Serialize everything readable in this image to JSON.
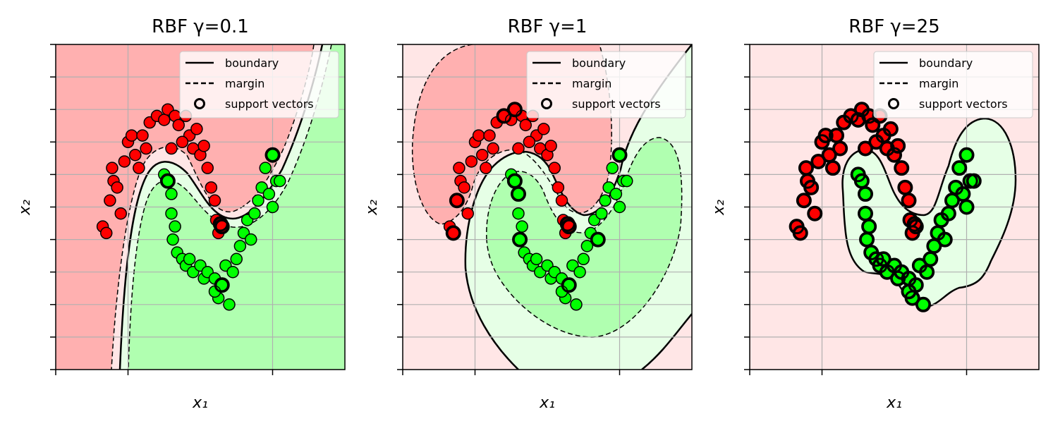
{
  "colors": {
    "class_red": "#ff0000",
    "class_green": "#00ff00",
    "region_red_strong": "#ffb0b0",
    "region_red_light": "#ffe6e6",
    "region_green_strong": "#b0ffb0",
    "region_green_light": "#e6ffe6",
    "grid": "#b0b0b0"
  },
  "legend": {
    "boundary": "boundary",
    "margin": "margin",
    "support_vectors": "support vectors",
    "placement": "upper right"
  },
  "chart_data": [
    {
      "type": "scatter",
      "title": "RBF γ=0.1",
      "xlabel": "x₁",
      "ylabel": "x₂",
      "grid": true,
      "xlim": [
        -1.5,
        2.5
      ],
      "ylim": [
        -1.0,
        1.5
      ],
      "gamma": 0.1
    },
    {
      "type": "scatter",
      "title": "RBF γ=1",
      "xlabel": "x₁",
      "ylabel": "x₂",
      "grid": true,
      "xlim": [
        -1.5,
        2.5
      ],
      "ylim": [
        -1.0,
        1.5
      ],
      "gamma": 1
    },
    {
      "type": "scatter",
      "title": "RBF γ=25",
      "xlabel": "x₁",
      "ylabel": "x₂",
      "grid": true,
      "xlim": [
        -1.5,
        2.5
      ],
      "ylim": [
        -1.0,
        1.5
      ],
      "gamma": 25
    }
  ],
  "dataset": {
    "class_a": [
      [
        -0.85,
        0.1
      ],
      [
        -0.8,
        0.05
      ],
      [
        -0.75,
        0.3
      ],
      [
        -0.7,
        0.45
      ],
      [
        -0.72,
        0.55
      ],
      [
        -0.6,
        0.2
      ],
      [
        -0.55,
        0.6
      ],
      [
        -0.5,
        0.75
      ],
      [
        -0.45,
        0.8
      ],
      [
        -0.4,
        0.65
      ],
      [
        -0.3,
        0.8
      ],
      [
        -0.2,
        0.9
      ],
      [
        -0.1,
        0.95
      ],
      [
        0.0,
        0.92
      ],
      [
        0.05,
        1.0
      ],
      [
        0.15,
        0.95
      ],
      [
        0.2,
        0.88
      ],
      [
        0.3,
        0.95
      ],
      [
        0.35,
        0.8
      ],
      [
        0.4,
        0.7
      ],
      [
        0.45,
        0.85
      ],
      [
        0.5,
        0.65
      ],
      [
        0.55,
        0.72
      ],
      [
        0.6,
        0.55
      ],
      [
        0.65,
        0.4
      ],
      [
        0.7,
        0.3
      ],
      [
        0.72,
        0.15
      ],
      [
        0.75,
        0.05
      ],
      [
        0.78,
        0.12
      ],
      [
        0.8,
        0.1
      ],
      [
        -0.65,
        0.4
      ],
      [
        -0.25,
        0.7
      ],
      [
        0.25,
        0.75
      ],
      [
        0.1,
        0.7
      ],
      [
        -0.35,
        0.55
      ]
    ],
    "class_b": [
      [
        0.0,
        0.5
      ],
      [
        0.05,
        0.45
      ],
      [
        0.1,
        0.35
      ],
      [
        0.1,
        0.2
      ],
      [
        0.15,
        0.1
      ],
      [
        0.12,
        0.0
      ],
      [
        0.18,
        -0.1
      ],
      [
        0.25,
        -0.15
      ],
      [
        0.3,
        -0.2
      ],
      [
        0.4,
        -0.25
      ],
      [
        0.5,
        -0.2
      ],
      [
        0.55,
        -0.3
      ],
      [
        0.6,
        -0.25
      ],
      [
        0.7,
        -0.3
      ],
      [
        0.75,
        -0.45
      ],
      [
        0.8,
        -0.35
      ],
      [
        0.85,
        -0.2
      ],
      [
        0.95,
        -0.25
      ],
      [
        1.0,
        -0.15
      ],
      [
        1.05,
        -0.05
      ],
      [
        1.1,
        0.05
      ],
      [
        1.15,
        0.15
      ],
      [
        1.2,
        0.0
      ],
      [
        1.25,
        0.2
      ],
      [
        1.3,
        0.3
      ],
      [
        1.35,
        0.4
      ],
      [
        1.4,
        0.55
      ],
      [
        1.45,
        0.35
      ],
      [
        1.5,
        0.25
      ],
      [
        1.55,
        0.45
      ],
      [
        1.5,
        0.65
      ],
      [
        1.6,
        0.45
      ],
      [
        0.7,
        -0.4
      ],
      [
        0.35,
        -0.15
      ],
      [
        0.9,
        -0.5
      ]
    ],
    "support_vectors": {
      "panel_0": {
        "class_a": [
          [
            0.78,
            0.12
          ],
          [
            0.8,
            0.1
          ]
        ],
        "class_b": [
          [
            0.05,
            0.45
          ],
          [
            0.8,
            -0.35
          ],
          [
            1.5,
            0.65
          ]
        ]
      },
      "panel_1": {
        "class_a": [
          [
            -0.8,
            0.05
          ],
          [
            -0.75,
            0.3
          ],
          [
            0.78,
            0.12
          ],
          [
            0.8,
            0.1
          ],
          [
            0.05,
            1.0
          ],
          [
            -0.1,
            0.95
          ]
        ],
        "class_b": [
          [
            0.05,
            0.45
          ],
          [
            0.1,
            0.35
          ],
          [
            0.8,
            -0.35
          ],
          [
            1.5,
            0.65
          ],
          [
            1.2,
            0.0
          ],
          [
            0.12,
            0.0
          ]
        ]
      },
      "panel_2": {
        "class_a": "all",
        "class_b": "all"
      }
    }
  }
}
